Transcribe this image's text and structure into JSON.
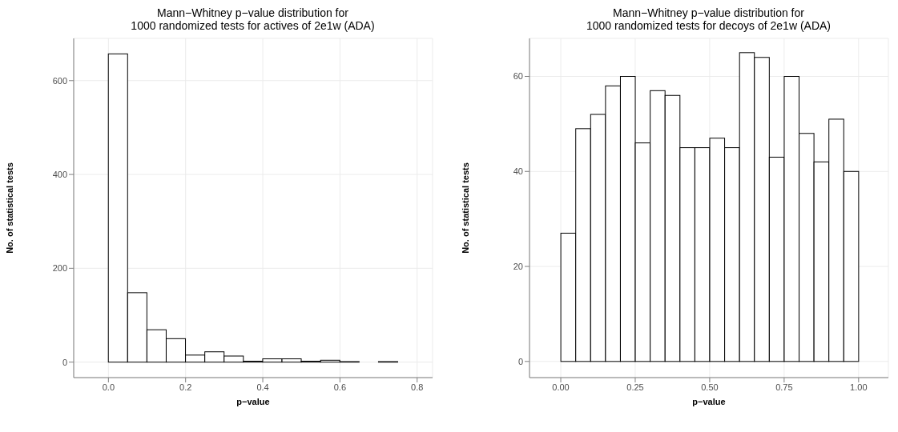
{
  "chart_data": [
    {
      "type": "histogram",
      "title": "Mann−Whitney p−value distribution for\n1000 randomized tests for actives of 2e1w (ADA)",
      "xlabel": "p−value",
      "ylabel": "No. of statistical tests",
      "bins": [
        -0.05,
        0,
        0.05,
        0.1,
        0.15,
        0.2,
        0.25,
        0.3,
        0.35,
        0.4,
        0.45,
        0.5,
        0.55,
        0.6,
        0.65,
        0.7,
        0.75,
        0.8
      ],
      "values": [
        0,
        657,
        148,
        69,
        50,
        15,
        22,
        13,
        2,
        7,
        7,
        2,
        4,
        1,
        0,
        1,
        0
      ],
      "color": "#ffffff",
      "xlim": [
        -0.09,
        0.84
      ],
      "xticks": [
        {
          "value": 0,
          "label": "0.0"
        },
        {
          "value": 0.2,
          "label": "0.2"
        },
        {
          "value": 0.4,
          "label": "0.4"
        },
        {
          "value": 0.6,
          "label": "0.6"
        },
        {
          "value": 0.8,
          "label": "0.8"
        }
      ],
      "ylim": [
        -33,
        690
      ],
      "yticks": [
        0,
        200,
        400,
        600
      ],
      "grid": true
    },
    {
      "type": "histogram",
      "title": "Mann−Whitney p−value distribution for\n1000 randomized tests for decoys of 2e1w (ADA)",
      "xlabel": "p−value",
      "ylabel": "No. of statistical tests",
      "bins": [
        -0.05,
        0,
        0.05,
        0.1,
        0.15,
        0.2,
        0.25,
        0.3,
        0.35,
        0.4,
        0.45,
        0.5,
        0.55,
        0.6,
        0.65,
        0.7,
        0.75,
        0.8,
        0.85,
        0.9,
        0.95,
        1.0,
        1.05
      ],
      "values": [
        0,
        27,
        49,
        52,
        58,
        60,
        46,
        57,
        56,
        45,
        45,
        47,
        45,
        65,
        64,
        43,
        60,
        48,
        42,
        51,
        40,
        0
      ],
      "color": "#ffffff",
      "xlim": [
        -0.105,
        1.1
      ],
      "xticks": [
        {
          "value": 0,
          "label": "0.00"
        },
        {
          "value": 0.25,
          "label": "0.25"
        },
        {
          "value": 0.5,
          "label": "0.50"
        },
        {
          "value": 0.75,
          "label": "0.75"
        },
        {
          "value": 1,
          "label": "1.00"
        }
      ],
      "ylim": [
        -3.4,
        68
      ],
      "yticks": [
        0,
        20,
        40,
        60
      ],
      "grid": true
    }
  ]
}
